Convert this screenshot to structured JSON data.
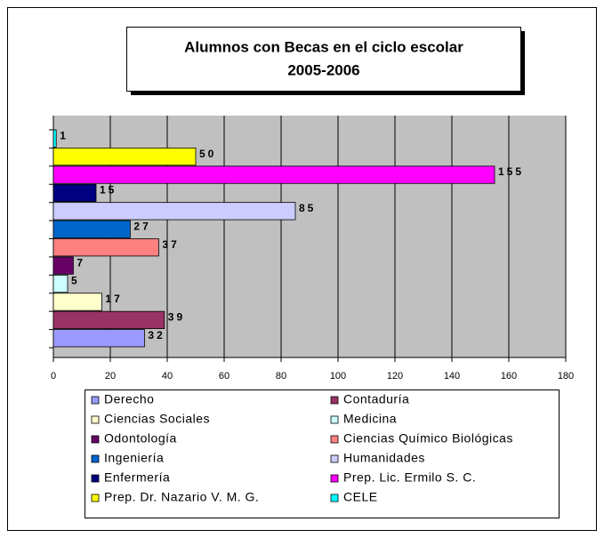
{
  "chart_data": {
    "type": "bar",
    "orientation": "horizontal",
    "title": [
      "Alumnos con Becas en el ciclo escolar",
      "2005-2006"
    ],
    "categories": [
      "Derecho",
      "Contaduría",
      "Ciencias Sociales",
      "Medicina",
      "Odontología",
      "Ciencias Químico Biológicas",
      "Ingeniería",
      "Humanidades",
      "Enfermería",
      "Prep. Lic. Ermilo S. C.",
      "Prep. Dr. Nazario V. M. G.",
      "CELE"
    ],
    "values": [
      32,
      39,
      17,
      5,
      7,
      37,
      27,
      85,
      15,
      155,
      50,
      1
    ],
    "colors": [
      "#9999ff",
      "#993366",
      "#ffffcc",
      "#ccffff",
      "#660066",
      "#ff8080",
      "#0066cc",
      "#ccccff",
      "#000080",
      "#ff00ff",
      "#ffff00",
      "#00ffff"
    ],
    "xlim": [
      0,
      180
    ],
    "xticks": [
      0,
      20,
      40,
      60,
      80,
      100,
      120,
      140,
      160,
      180
    ],
    "grid": true,
    "legend": "bottom",
    "plot_background": "#c0c0c0"
  }
}
